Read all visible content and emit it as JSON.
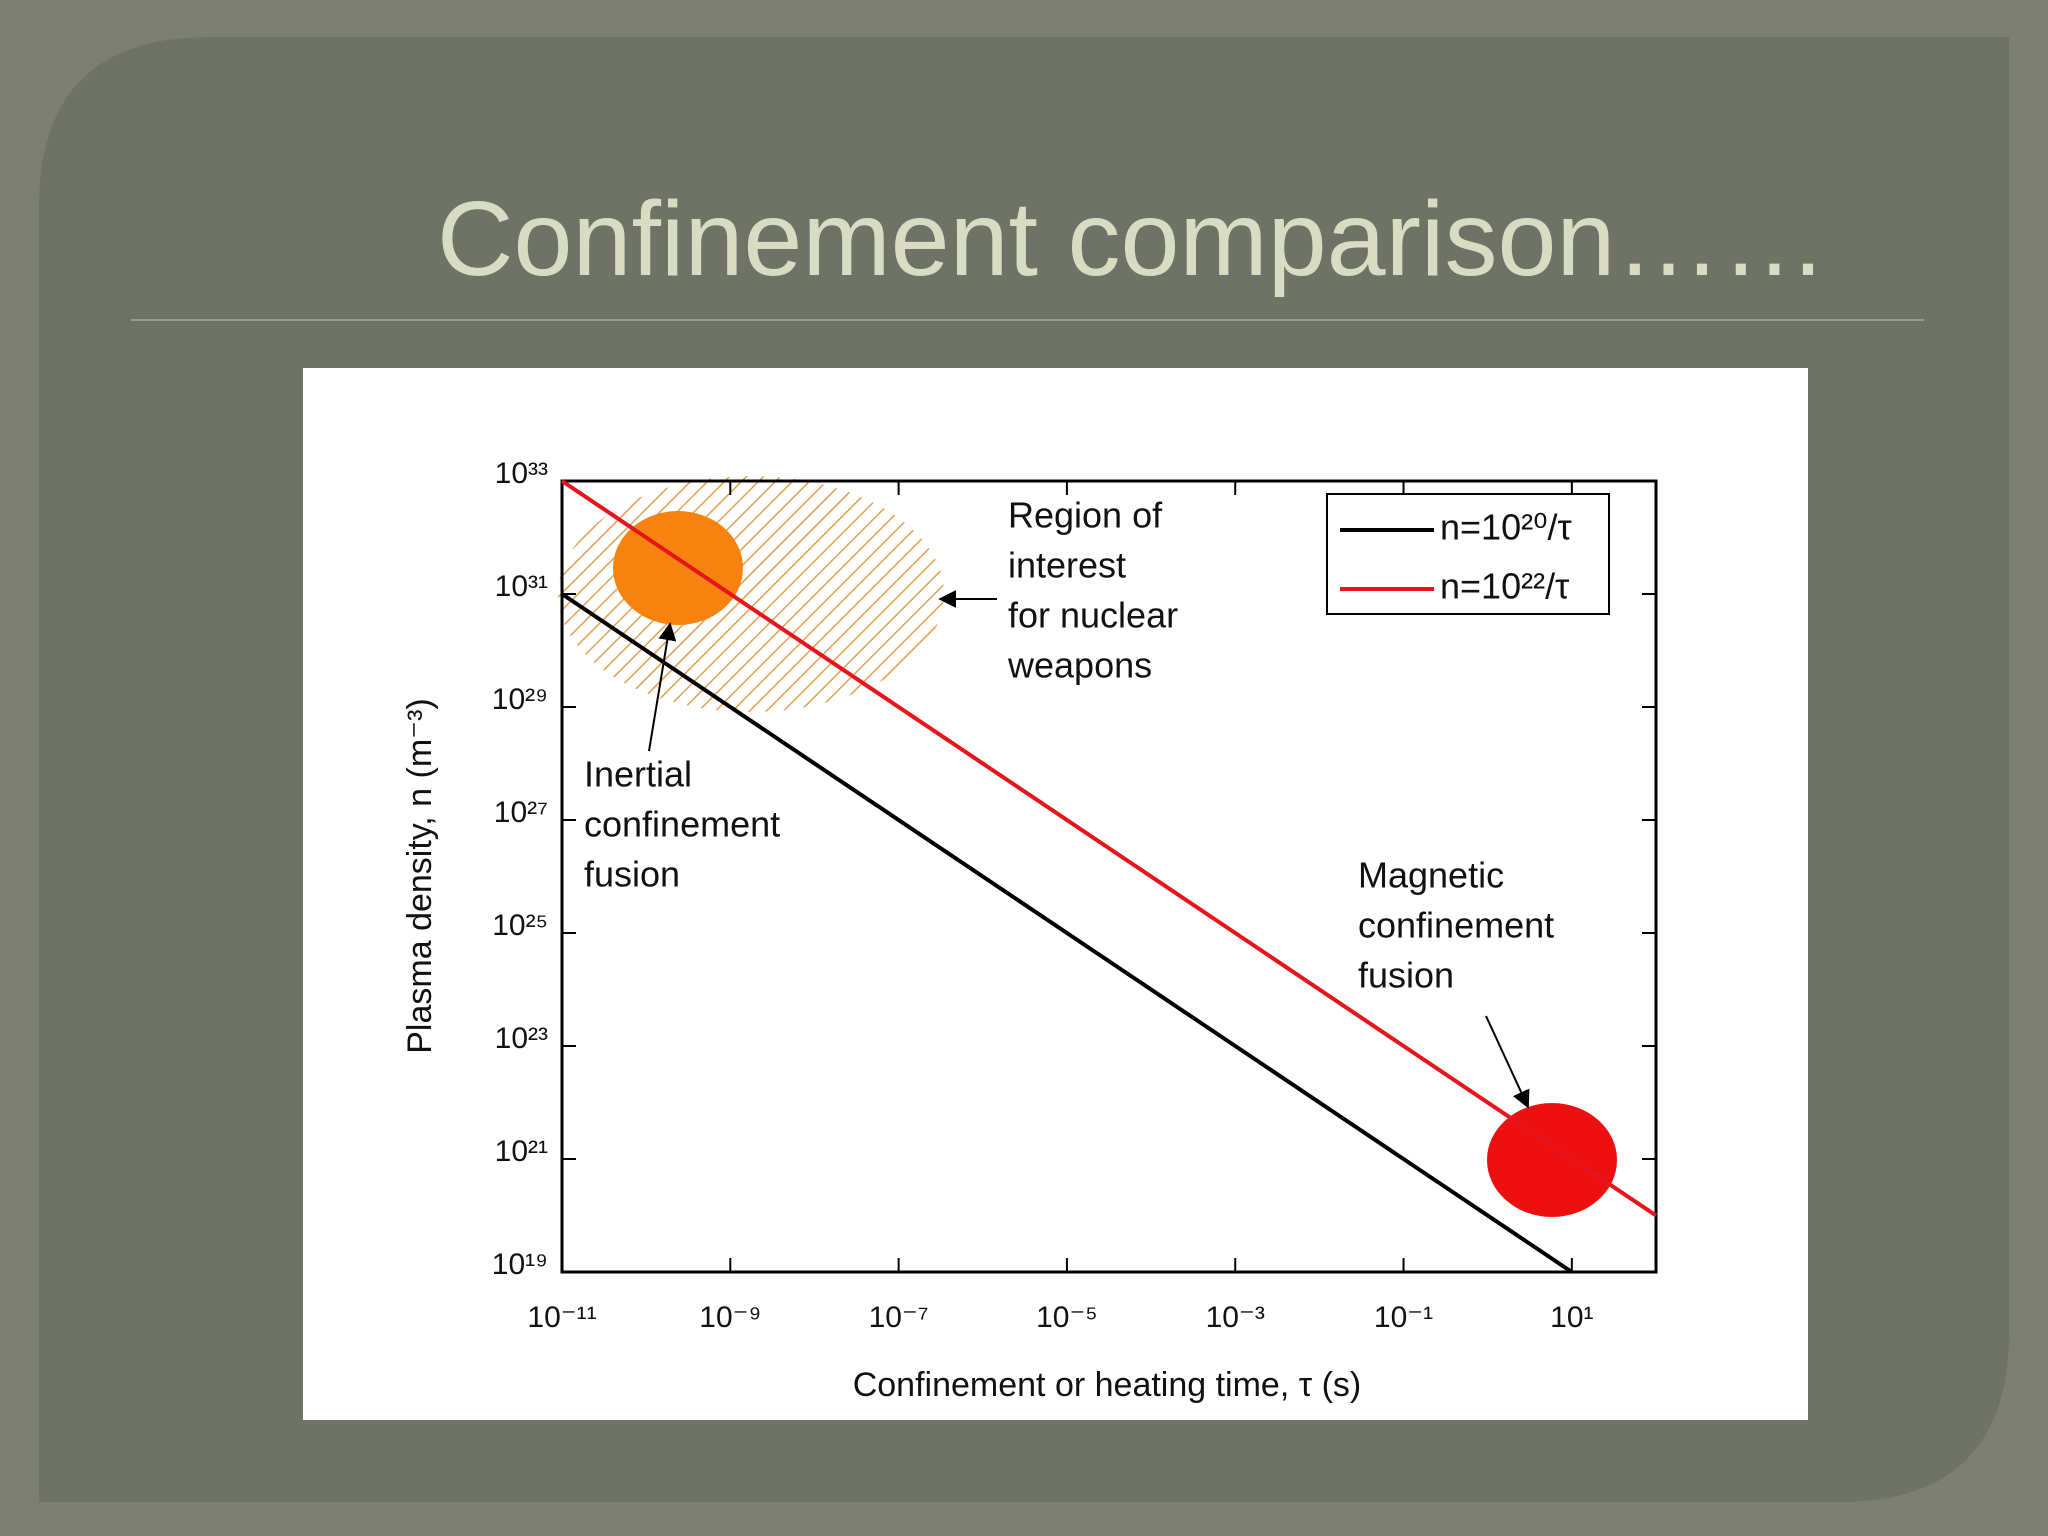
{
  "slide_title": "Confinement comparison……",
  "chart_data": {
    "type": "line",
    "xlabel": "Confinement or heating time, τ (s)",
    "ylabel": "Plasma density, n (m⁻³)",
    "xscale": "log",
    "yscale": "log",
    "grid": false,
    "legend": "upper right",
    "xlim": [
      1e-11,
      100
    ],
    "ylim": [
      1e+19,
      1e+33
    ],
    "xticks": [
      {
        "value": 1e-11,
        "label": "10⁻¹¹"
      },
      {
        "value": 1e-09,
        "label": "10⁻⁹"
      },
      {
        "value": 1e-07,
        "label": "10⁻⁷"
      },
      {
        "value": 1e-05,
        "label": "10⁻⁵"
      },
      {
        "value": 0.001,
        "label": "10⁻³"
      },
      {
        "value": 0.1,
        "label": "10⁻¹"
      },
      {
        "value": 10,
        "label": "10¹"
      }
    ],
    "yticks": [
      {
        "value": 1e+19,
        "label": "10¹⁹"
      },
      {
        "value": 1e+21,
        "label": "10²¹"
      },
      {
        "value": 1e+23,
        "label": "10²³"
      },
      {
        "value": 1e+25,
        "label": "10²⁵"
      },
      {
        "value": 1e+27,
        "label": "10²⁷"
      },
      {
        "value": 1e+29,
        "label": "10²⁹"
      },
      {
        "value": 1e+31,
        "label": "10³¹"
      },
      {
        "value": 1e+33,
        "label": "10³³"
      }
    ],
    "series": [
      {
        "name": "n=10²⁰/τ",
        "color": "#000000",
        "x": [
          1e-11,
          10
        ],
        "values": [
          1e+31,
          1e+19
        ]
      },
      {
        "name": "n=10²²/τ",
        "color": "#e8141c",
        "x": [
          1e-11,
          100
        ],
        "values": [
          1e+33,
          1e+20
        ]
      }
    ],
    "annotations": [
      {
        "lines": [
          "Region of",
          "interest",
          "for nuclear",
          "weapons"
        ]
      },
      {
        "lines": [
          "Inertial",
          "confinement",
          "fusion"
        ]
      },
      {
        "lines": [
          "Magnetic",
          "confinement",
          "fusion"
        ]
      }
    ]
  }
}
